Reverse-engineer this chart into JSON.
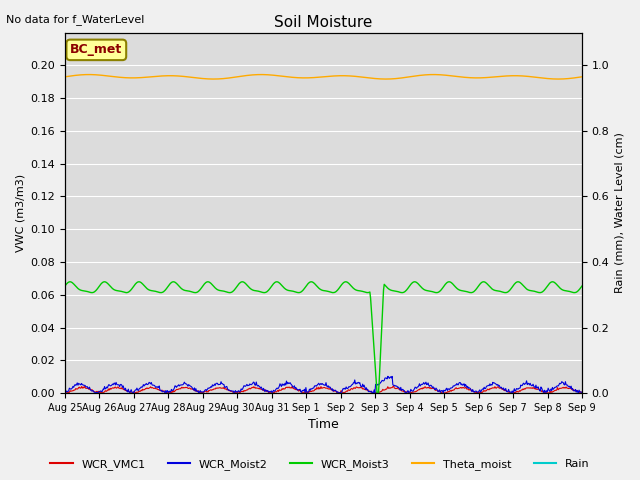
{
  "title": "Soil Moisture",
  "title_note": "No data for f_WaterLevel",
  "ylabel_left": "VWC (m3/m3)",
  "ylabel_right": "Rain (mm), Water Level (cm)",
  "xlabel": "Time",
  "annotation_label": "BC_met",
  "ylim_left": [
    0.0,
    0.22
  ],
  "ylim_right": [
    0.0,
    1.1
  ],
  "bg_color": "#dcdcdc",
  "fig_color": "#f0f0f0",
  "grid_color": "#ffffff",
  "colors": {
    "WCR_VMC1": "#dd0000",
    "WCR_Moist2": "#0000dd",
    "WCR_Moist3": "#00cc00",
    "Theta_moist": "#ffaa00",
    "Rain": "#00cccc"
  },
  "legend_entries": [
    "WCR_VMC1",
    "WCR_Moist2",
    "WCR_Moist3",
    "Theta_moist",
    "Rain"
  ],
  "yticks_left": [
    0.0,
    0.02,
    0.04,
    0.06,
    0.08,
    0.1,
    0.12,
    0.14,
    0.16,
    0.18,
    0.2
  ],
  "yticks_right": [
    0.0,
    0.2,
    0.4,
    0.6,
    0.8,
    1.0
  ],
  "tick_labels": [
    "Aug 25",
    "Aug 26",
    "Aug 27",
    "Aug 28",
    "Aug 29",
    "Aug 30",
    "Aug 31",
    "Sep 1",
    "Sep 2",
    "Sep 3",
    "Sep 4",
    "Sep 5",
    "Sep 6",
    "Sep 7",
    "Sep 8",
    "Sep 9"
  ]
}
